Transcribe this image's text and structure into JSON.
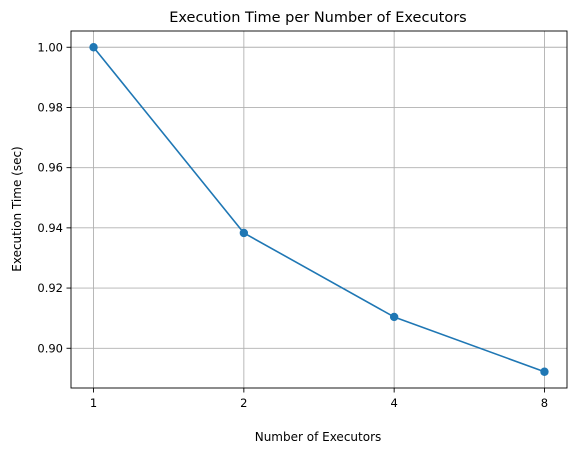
{
  "chart_data": {
    "type": "line",
    "title": "Execution Time per Number of Executors",
    "xlabel": "Number of Executors",
    "ylabel": "Execution Time (sec)",
    "x_scale": "categorical",
    "categories": [
      "1",
      "2",
      "4",
      "8"
    ],
    "series": [
      {
        "values": [
          1.0,
          0.9383,
          0.9104,
          0.8922
        ],
        "color": "#1f77b4",
        "marker": "circle"
      }
    ],
    "ylim": [
      0.8868,
      1.0054
    ],
    "yticks": [
      0.9,
      0.92,
      0.94,
      0.96,
      0.98,
      1.0
    ],
    "ytick_labels": [
      "0.90",
      "0.92",
      "0.94",
      "0.96",
      "0.98",
      "1.00"
    ],
    "grid": true,
    "legend": false
  }
}
